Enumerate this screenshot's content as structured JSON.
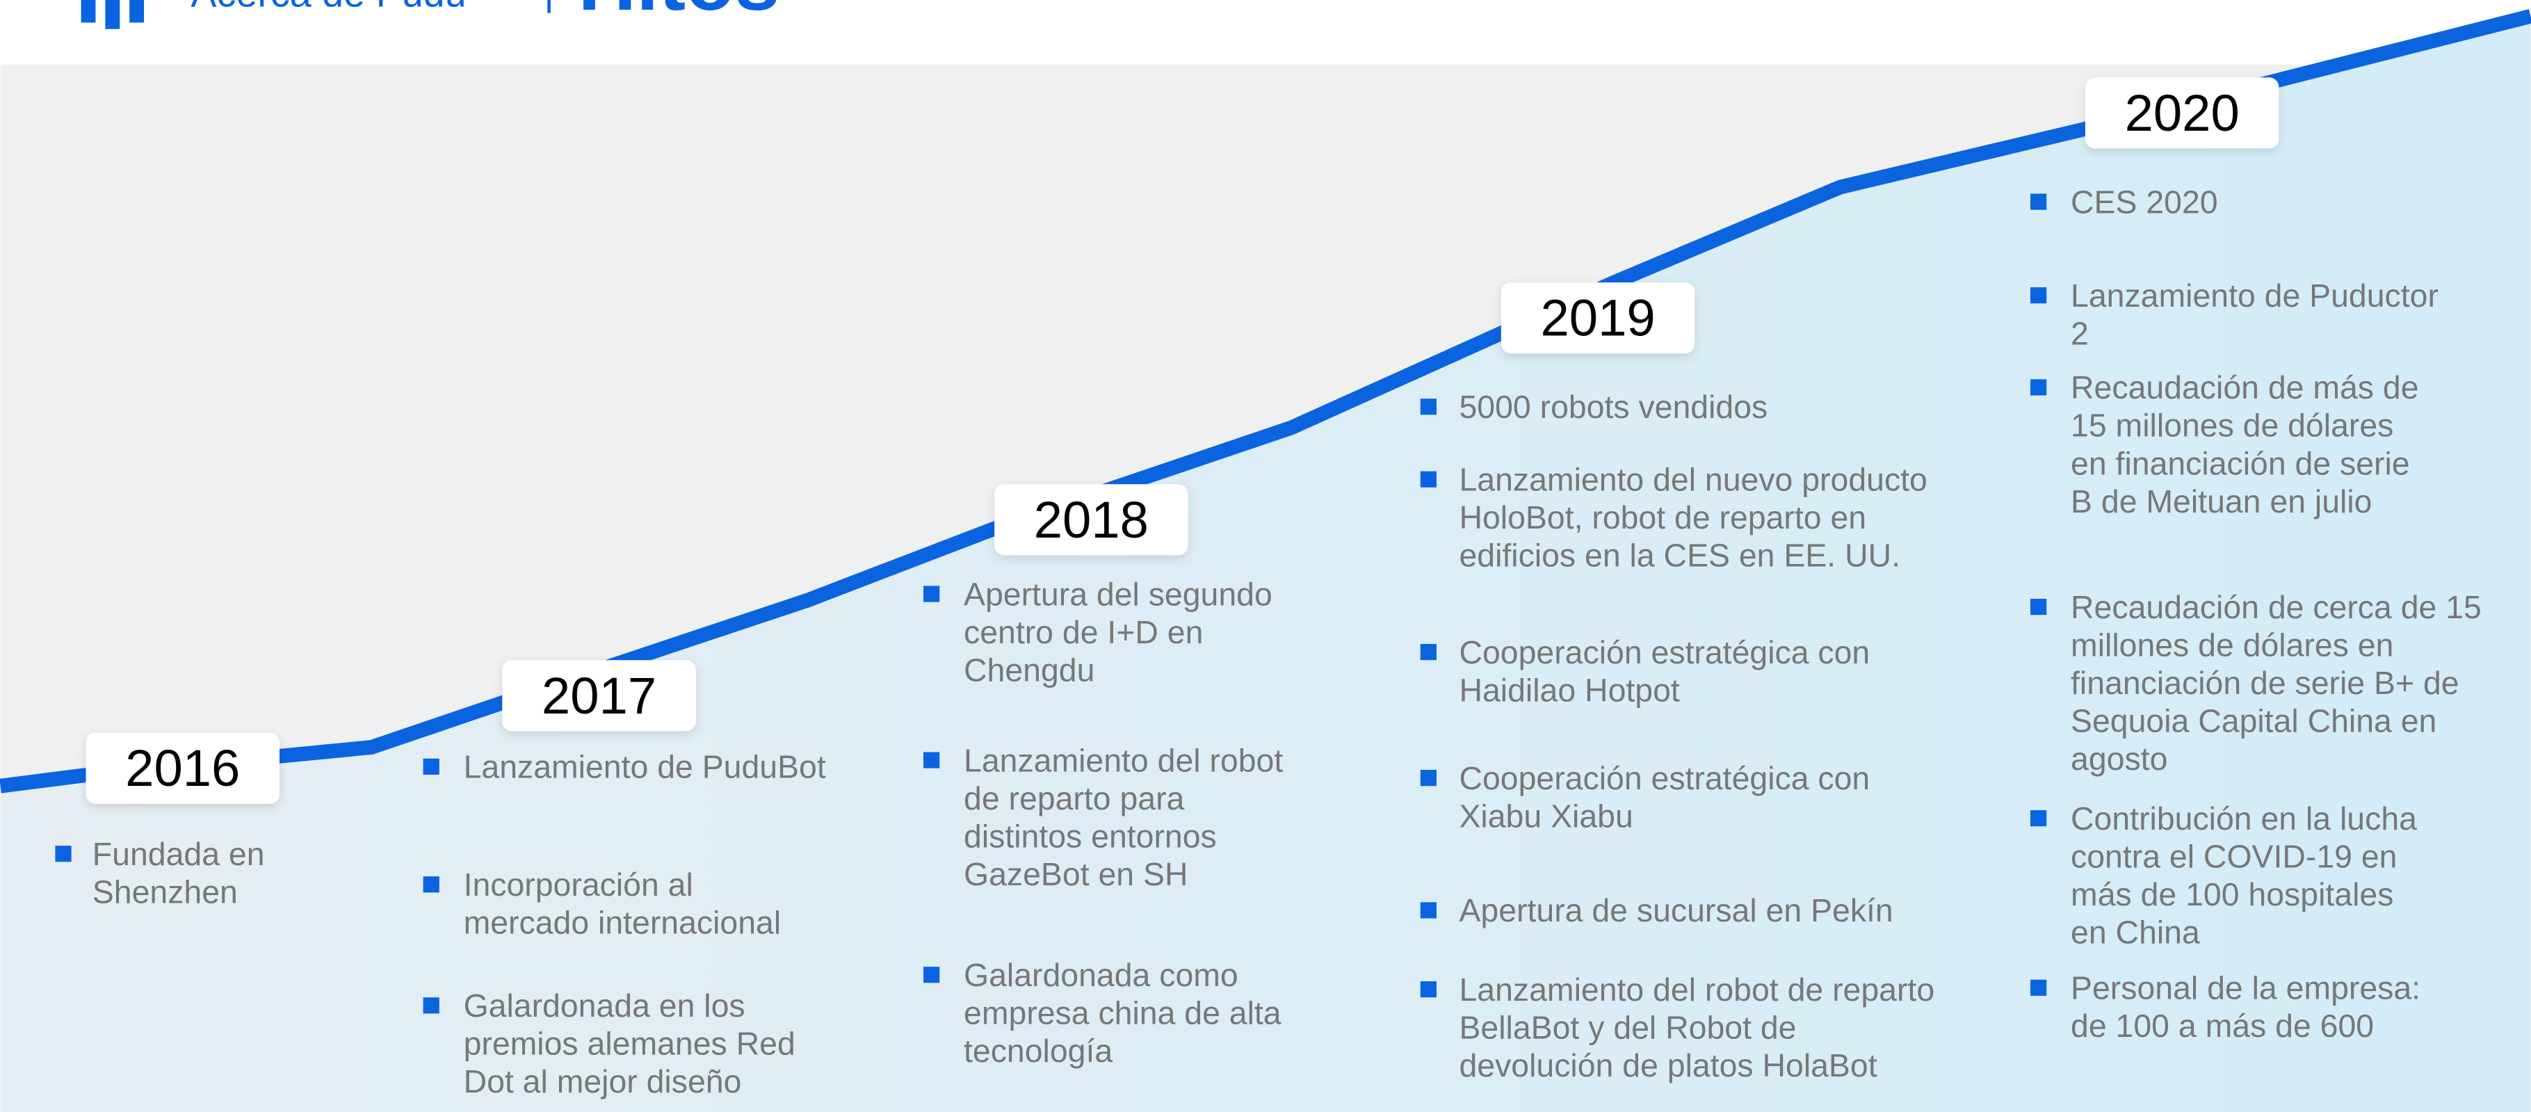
{
  "header": {
    "section": "Acerca de Pudu",
    "title": "Hitos"
  },
  "timeline": [
    {
      "year": "2016",
      "items": [
        [
          "Fundada en",
          "Shenzhen"
        ]
      ]
    },
    {
      "year": "2017",
      "items": [
        [
          "Lanzamiento de PuduBot"
        ],
        [
          "Incorporación al",
          "mercado internacional"
        ],
        [
          "Galardonada en los",
          "premios alemanes Red",
          "Dot al mejor diseño"
        ]
      ]
    },
    {
      "year": "2018",
      "items": [
        [
          "Apertura del segundo",
          "centro de I+D en",
          "Chengdu"
        ],
        [
          "Lanzamiento del robot",
          "de reparto para",
          "distintos entornos",
          "GazeBot en SH"
        ],
        [
          "Galardonada como",
          "empresa china de alta",
          "tecnología"
        ]
      ]
    },
    {
      "year": "2019",
      "items": [
        [
          "5000 robots vendidos"
        ],
        [
          "Lanzamiento del nuevo producto",
          "HoloBot, robot de reparto en",
          "edificios en la CES en EE. UU."
        ],
        [
          "Cooperación estratégica con",
          "Haidilao Hotpot"
        ],
        [
          "Cooperación estratégica con",
          "Xiabu Xiabu"
        ],
        [
          "Apertura de sucursal en Pekín"
        ],
        [
          "Lanzamiento del robot de reparto",
          "BellaBot y del Robot de",
          "devolución de platos HolaBot"
        ]
      ]
    },
    {
      "year": "2020",
      "items": [
        [
          "CES 2020"
        ],
        [
          "Lanzamiento de Puductor",
          "2"
        ],
        [
          "Recaudación de más de",
          "15 millones de dólares",
          "en financiación de serie",
          "B de Meituan en julio"
        ],
        [
          "Recaudación de cerca de 15",
          "millones de dólares en",
          "financiación de serie B+ de",
          "Sequoia Capital China en",
          "agosto"
        ],
        [
          "Contribución en la lucha",
          "contra el COVID-19 en",
          "más de 100 hospitales",
          "en China"
        ],
        [
          "Personal de la empresa:",
          "de 100 a más de 600"
        ]
      ]
    }
  ]
}
